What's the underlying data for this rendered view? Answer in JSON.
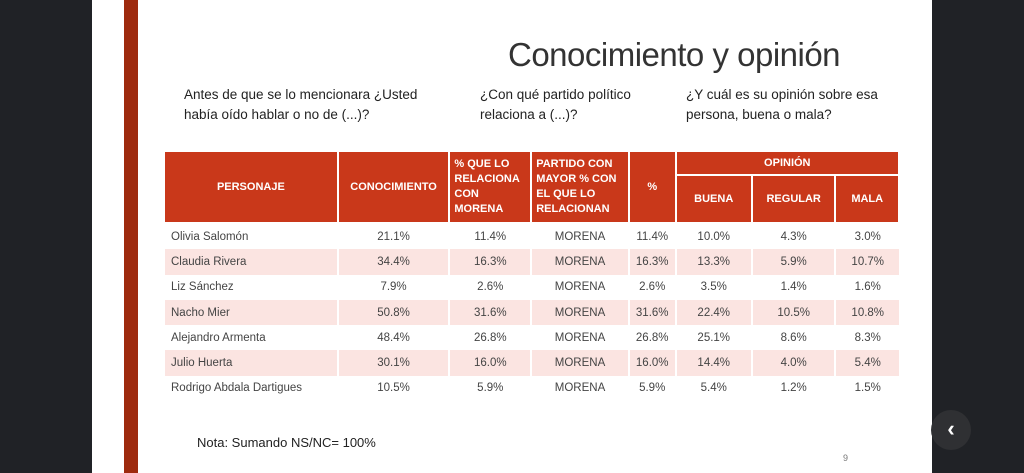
{
  "slide": {
    "title": "Conocimiento y opinión",
    "questions": [
      "Antes de que se lo mencionara ¿Usted había oído hablar o no de (...)?",
      "¿Con qué partido político relaciona a (...)?",
      "¿Y cuál es su opinión sobre esa persona, buena o mala?"
    ],
    "headers": {
      "personaje": "PERSONAJE",
      "conocimiento": "CONOCIMIENTO",
      "relaciona": "% QUE LO RELACIONA CON MORENA",
      "partido": "PARTIDO CON MAYOR % CON EL QUE LO RELACIONAN",
      "pct": "%",
      "opinion": "OPINIÓN",
      "buena": "BUENA",
      "regular": "REGULAR",
      "mala": "MALA"
    },
    "rows": [
      [
        "Olivia Salomón",
        "21.1%",
        "11.4%",
        "MORENA",
        "11.4%",
        "10.0%",
        "4.3%",
        "3.0%"
      ],
      [
        "Claudia Rivera",
        "34.4%",
        "16.3%",
        "MORENA",
        "16.3%",
        "13.3%",
        "5.9%",
        "10.7%"
      ],
      [
        "Liz Sánchez",
        "7.9%",
        "2.6%",
        "MORENA",
        "2.6%",
        "3.5%",
        "1.4%",
        "1.6%"
      ],
      [
        "Nacho Mier",
        "50.8%",
        "31.6%",
        "MORENA",
        "31.6%",
        "22.4%",
        "10.5%",
        "10.8%"
      ],
      [
        "Alejandro Armenta",
        "48.4%",
        "26.8%",
        "MORENA",
        "26.8%",
        "25.1%",
        "8.6%",
        "8.3%"
      ],
      [
        "Julio Huerta",
        "30.1%",
        "16.0%",
        "MORENA",
        "16.0%",
        "14.4%",
        "4.0%",
        "5.4%"
      ],
      [
        "Rodrigo Abdala Dartigues",
        "10.5%",
        "5.9%",
        "MORENA",
        "5.9%",
        "5.4%",
        "1.2%",
        "1.5%"
      ]
    ],
    "note": "Nota: Sumando NS/NC= 100%",
    "page_number": "9"
  },
  "viewer": {
    "prev_icon": "chevron-left-icon",
    "prev_glyph": "‹"
  },
  "colors": {
    "header": "#c9381a",
    "accent_bar": "#9e2a0e",
    "alt_row": "#fbe4e1"
  }
}
